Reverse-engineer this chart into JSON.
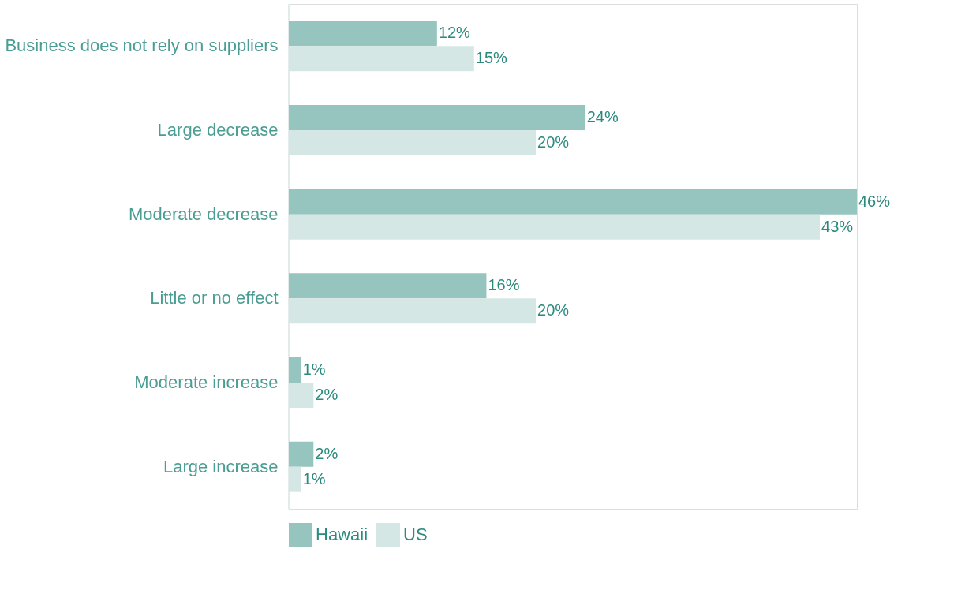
{
  "chart_data": {
    "type": "bar",
    "orientation": "horizontal",
    "legend": "bottom",
    "grid": false,
    "categories": [
      "Business does not rely on suppliers",
      "Large decrease",
      "Moderate decrease",
      "Little or no effect",
      "Moderate increase",
      "Large increase"
    ],
    "series": [
      {
        "name": "Hawaii",
        "color": "#96c4bf",
        "values": [
          12,
          24,
          46,
          16,
          1,
          2
        ],
        "value_labels": [
          "12%",
          "24%",
          "46%",
          "16%",
          "1%",
          "2%"
        ]
      },
      {
        "name": "US",
        "color": "#d5e7e5",
        "values": [
          15,
          20,
          43,
          20,
          2,
          1
        ],
        "value_labels": [
          "15%",
          "20%",
          "43%",
          "20%",
          "2%",
          "1%"
        ]
      }
    ]
  }
}
